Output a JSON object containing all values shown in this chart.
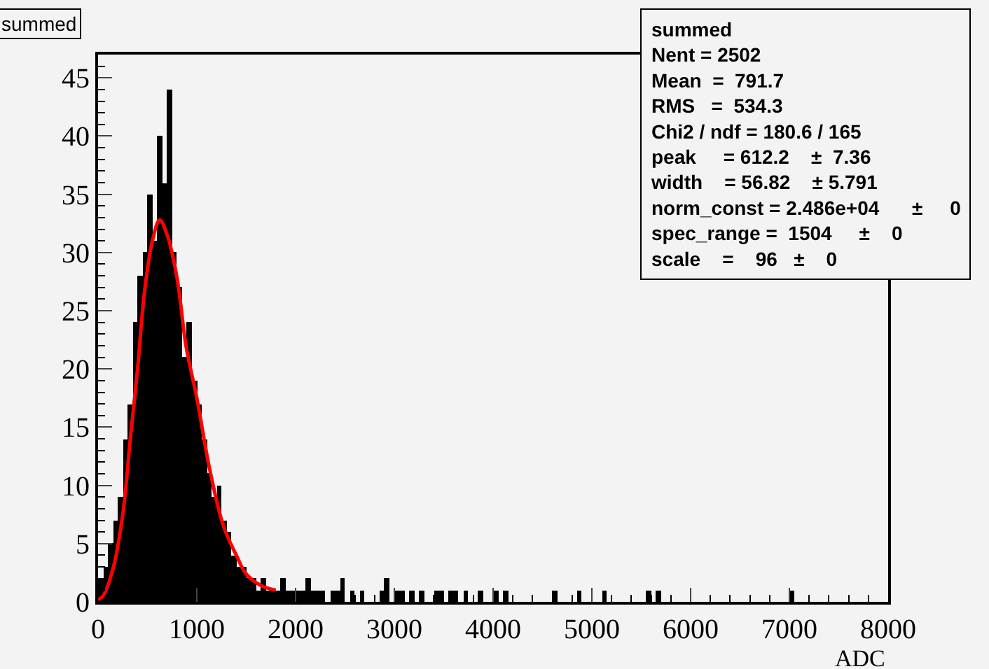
{
  "chart_data": {
    "type": "histogram",
    "title": "summed",
    "xlabel": "ADC",
    "bins": [
      0,
      50,
      100,
      150,
      200,
      250,
      300,
      350,
      400,
      450,
      500,
      550,
      600,
      650,
      700,
      750,
      800,
      850,
      900,
      950,
      1000,
      1050,
      1100,
      1150,
      1200,
      1250,
      1300,
      1350,
      1400,
      1450,
      1500,
      1550,
      1600,
      1650,
      1700,
      1750,
      1800,
      1850,
      1900,
      1950,
      2000,
      2050,
      2100,
      2150,
      2200,
      2250,
      2300,
      2350,
      2400,
      2450,
      2500,
      2550,
      2600,
      2650,
      2700,
      2750,
      2800,
      2850,
      2900,
      2950,
      3000,
      3050,
      3100,
      3150,
      3200,
      3250,
      3300,
      3350,
      3400,
      3450,
      3500,
      3550,
      3600,
      3650,
      3700,
      3750,
      3800,
      3850,
      3900,
      3950,
      4000,
      4050,
      4100,
      4150,
      4200,
      4250,
      4300,
      4350,
      4400,
      4450,
      4500,
      4550,
      4600,
      4650,
      4700,
      4750,
      4800,
      4850,
      4900,
      4950,
      5000,
      5050,
      5100,
      5150,
      5200,
      5250,
      5300,
      5350,
      5400,
      5450,
      5500,
      5550,
      5600,
      5650,
      5700,
      5750,
      5800,
      5850,
      5900,
      5950,
      6000,
      6050,
      6100,
      6150,
      6200,
      6250,
      6300,
      6350,
      6400,
      6450,
      6500,
      6550,
      6600,
      6650,
      6700,
      6750,
      6800,
      6850,
      6900,
      6950,
      7000,
      7050,
      7100,
      7150,
      7200,
      7250,
      7300,
      7350,
      7400,
      7450,
      7500,
      7550,
      7600,
      7650,
      7700,
      7750,
      7800,
      7850,
      7900,
      7950,
      8000
    ],
    "values": [
      2,
      3,
      5,
      7,
      9,
      14,
      17,
      24,
      28,
      30,
      35,
      31,
      40,
      36,
      44,
      30,
      27,
      21,
      24,
      19,
      17,
      14,
      11,
      9,
      10,
      7,
      6,
      4,
      3,
      3,
      2,
      2,
      1,
      2,
      1,
      1,
      1,
      2,
      1,
      1,
      1,
      1,
      2,
      1,
      1,
      1,
      0,
      1,
      1,
      2,
      0,
      1,
      0,
      1,
      0,
      0,
      0,
      1,
      2,
      0,
      1,
      1,
      0,
      1,
      0,
      1,
      0,
      0,
      1,
      1,
      0,
      1,
      1,
      0,
      1,
      0,
      0,
      1,
      0,
      0,
      1,
      0,
      1,
      0,
      0,
      0,
      0,
      0,
      0,
      0,
      0,
      0,
      1,
      0,
      0,
      0,
      0,
      1,
      0,
      0,
      0,
      0,
      1,
      0,
      0,
      0,
      0,
      0,
      0,
      0,
      0,
      1,
      0,
      1,
      0,
      0,
      0,
      0,
      0,
      0,
      0,
      0,
      0,
      0,
      0,
      0,
      0,
      0,
      0,
      0,
      0,
      0,
      0,
      0,
      0,
      0,
      0,
      0,
      0,
      0,
      1,
      0,
      0,
      0,
      0,
      0,
      0,
      0,
      0,
      0,
      0,
      0,
      0,
      0,
      0,
      0,
      0,
      0,
      0,
      0
    ],
    "color": "#000000",
    "series": [
      {
        "type": "line",
        "color": "#ff0000",
        "x": [
          0,
          50,
          150,
          250,
          330,
          400,
          470,
          550,
          624,
          700,
          800,
          890,
          1000,
          1130,
          1270,
          1400,
          1500,
          1650,
          1800
        ],
        "values": [
          0.2,
          0.5,
          2.8,
          7.5,
          14.3,
          20,
          26.6,
          31,
          32.8,
          31.5,
          27.8,
          22,
          17.5,
          11.4,
          6.5,
          4,
          2.4,
          1.4,
          1
        ]
      }
    ],
    "xlim": [
      0,
      8000
    ],
    "xticks": [
      0,
      1000,
      2000,
      3000,
      4000,
      5000,
      6000,
      7000,
      8000
    ],
    "ylim": [
      0,
      47
    ],
    "yticks": [
      0,
      5,
      10,
      15,
      20,
      25,
      30,
      35,
      40,
      45
    ],
    "annotations": [
      "summed",
      "Nent = 2502",
      "Mean  =  791.7",
      "RMS   =  534.3",
      "Chi2 / ndf = 180.6 / 165",
      "peak     = 612.2    ±  7.36",
      "width    = 56.82    ± 5.791",
      "norm_const = 2.486e+04      ±     0",
      "spec_range =  1504     ±    0",
      "scale    =    96   ±    0"
    ],
    "grid": false
  }
}
